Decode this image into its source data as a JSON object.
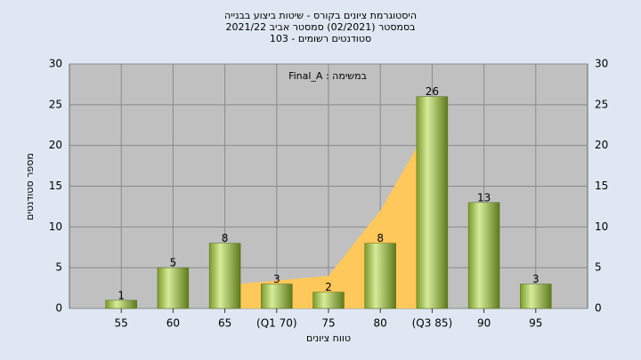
{
  "chart_data": {
    "type": "bar",
    "title": "היסטוגרמת ציונים בקורס - שיטות ביצוע בבנייה",
    "subtitle": [
      "בסמסטר  (02/2021)  סמסטר אביב 2021/22",
      "סטודנטים רשומים - 103"
    ],
    "annotation": "במשימה : Final_A",
    "xlabel": "טווח ציונים",
    "ylabel": "מספר סטודנטים",
    "categories": [
      "55",
      "60",
      "65",
      "(Q1 70)",
      "75",
      "80",
      "(Q3 85)",
      "90",
      "95"
    ],
    "values": [
      1,
      5,
      8,
      3,
      2,
      8,
      26,
      13,
      3
    ],
    "color": "#9bbb4a",
    "area": {
      "color": "#ffc85a",
      "values": [
        null,
        null,
        null,
        3,
        4,
        12,
        23,
        null,
        null
      ]
    },
    "ylim": [
      0,
      30
    ],
    "yticks": [
      0,
      5,
      10,
      15,
      20,
      25,
      30
    ],
    "grid": true
  }
}
